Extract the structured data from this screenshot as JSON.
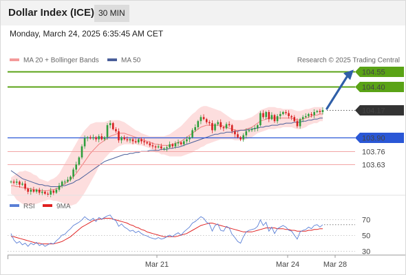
{
  "header": {
    "title": "Dollar Index (ICE)",
    "timeframe": "30 MIN"
  },
  "datetime": "Monday, March 24, 2025 6:35:45 AM CET",
  "legend": {
    "ma20": "MA 20 + Bollinger Bands",
    "ma50": "MA 50",
    "credit": "Research © 2025 Trading Central"
  },
  "colors": {
    "bull": "#2e9e3c",
    "bear": "#d62020",
    "ma20": "#f07f7f",
    "ma50": "#4a5f9a",
    "band": "#fdd8d8",
    "resistance": "#5aa316",
    "pivot": "#2a57d6",
    "support": "#e43030",
    "current": "#333333",
    "rsi": "#5a7fd6",
    "rsi_ma": "#e02020"
  },
  "chart_data": [
    {
      "type": "candlestick",
      "x_labels": [
        "Mar 21",
        "Mar 24",
        "Mar 28"
      ],
      "y_min": 103.25,
      "y_max": 104.75,
      "levels": [
        {
          "label": "104.55",
          "value": 104.55,
          "kind": "resistance"
        },
        {
          "label": "104.40",
          "value": 104.4,
          "kind": "resistance"
        },
        {
          "label": "104.17",
          "value": 104.17,
          "kind": "current"
        },
        {
          "label": "103.90",
          "value": 103.9,
          "kind": "pivot"
        },
        {
          "label": "103.76",
          "value": 103.76,
          "kind": "support"
        },
        {
          "label": "103.63",
          "value": 103.63,
          "kind": "support"
        }
      ],
      "closes": [
        103.46,
        103.45,
        103.46,
        103.43,
        103.44,
        103.39,
        103.36,
        103.38,
        103.36,
        103.38,
        103.35,
        103.36,
        103.34,
        103.33,
        103.37,
        103.35,
        103.38,
        103.42,
        103.46,
        103.46,
        103.48,
        103.51,
        103.58,
        103.63,
        103.7,
        103.81,
        103.89,
        103.9,
        103.89,
        103.9,
        103.88,
        103.91,
        103.88,
        103.9,
        104.02,
        104.04,
        103.98,
        103.96,
        103.87,
        103.9,
        103.88,
        103.87,
        103.88,
        103.86,
        103.85,
        103.88,
        103.86,
        103.85,
        103.84,
        103.82,
        103.81,
        103.8,
        103.81,
        103.79,
        103.79,
        103.8,
        103.83,
        103.81,
        103.84,
        103.85,
        103.83,
        103.86,
        103.88,
        103.9,
        103.97,
        104.0,
        104.06,
        104.1,
        104.08,
        104.05,
        104.04,
        103.97,
        104.03,
        104.05,
        104.0,
        103.99,
        104.03,
        104.02,
        103.96,
        103.93,
        103.9,
        103.88,
        103.92,
        103.96,
        103.97,
        103.98,
        103.99,
        104.02,
        104.14,
        104.1,
        104.15,
        104.08,
        104.12,
        104.06,
        104.11,
        104.13,
        104.15,
        104.14,
        104.11,
        104.1,
        104.06,
        104.01,
        104.08,
        104.1,
        104.11,
        104.13,
        104.12,
        104.15,
        104.16,
        104.15,
        104.17
      ],
      "ma20": [
        103.42,
        103.42,
        103.41,
        103.41,
        103.4,
        103.4,
        103.39,
        103.39,
        103.38,
        103.38,
        103.37,
        103.37,
        103.37,
        103.37,
        103.38,
        103.38,
        103.39,
        103.4,
        103.42,
        103.44,
        103.46,
        103.48,
        103.51,
        103.54,
        103.58,
        103.62,
        103.66,
        103.7,
        103.74,
        103.77,
        103.8,
        103.83,
        103.85,
        103.87,
        103.89,
        103.91,
        103.92,
        103.93,
        103.94,
        103.94,
        103.94,
        103.93,
        103.92,
        103.91,
        103.9,
        103.89,
        103.88,
        103.87,
        103.86,
        103.85,
        103.84,
        103.83,
        103.83,
        103.82,
        103.82,
        103.82,
        103.82,
        103.83,
        103.84,
        103.85,
        103.86,
        103.88,
        103.9,
        103.92,
        103.94,
        103.96,
        103.98,
        104.0,
        104.01,
        104.02,
        104.02,
        104.02,
        104.02,
        104.02,
        104.02,
        104.01,
        104.0,
        103.99,
        103.98,
        103.97,
        103.97,
        103.97,
        103.97,
        103.98,
        103.99,
        104.0,
        104.02,
        104.04,
        104.06,
        104.07,
        104.08,
        104.09,
        104.09,
        104.09,
        104.09,
        104.09,
        104.09,
        104.09,
        104.09,
        104.09,
        104.08,
        104.07,
        104.07,
        104.08,
        104.09,
        104.1,
        104.11,
        104.12,
        104.12,
        104.13,
        104.13
      ],
      "band_width": [
        0.08,
        0.1,
        0.13,
        0.15,
        0.16,
        0.17,
        0.17,
        0.16,
        0.15,
        0.14,
        0.12,
        0.11,
        0.1,
        0.09,
        0.1,
        0.11,
        0.12,
        0.14,
        0.17,
        0.2,
        0.23,
        0.26,
        0.28,
        0.3,
        0.31,
        0.31,
        0.31,
        0.3,
        0.29,
        0.27,
        0.25,
        0.22,
        0.2,
        0.18,
        0.17,
        0.16,
        0.15,
        0.14,
        0.13,
        0.12,
        0.11,
        0.1,
        0.09,
        0.08,
        0.07,
        0.07,
        0.06,
        0.06,
        0.06,
        0.06,
        0.07,
        0.08,
        0.08,
        0.09,
        0.09,
        0.1,
        0.11,
        0.12,
        0.13,
        0.14,
        0.15,
        0.16,
        0.17,
        0.18,
        0.19,
        0.19,
        0.2,
        0.2,
        0.2,
        0.19,
        0.18,
        0.17,
        0.16,
        0.15,
        0.14,
        0.13,
        0.12,
        0.11,
        0.1,
        0.1,
        0.1,
        0.1,
        0.1,
        0.1,
        0.1,
        0.1,
        0.1,
        0.1,
        0.11,
        0.11,
        0.11,
        0.11,
        0.11,
        0.11,
        0.1,
        0.1,
        0.09,
        0.09,
        0.09,
        0.09,
        0.09,
        0.09,
        0.09,
        0.09,
        0.09,
        0.08,
        0.08,
        0.08,
        0.08,
        0.07,
        0.07
      ],
      "ma50": [
        103.57,
        103.55,
        103.53,
        103.51,
        103.49,
        103.48,
        103.47,
        103.46,
        103.45,
        103.44,
        103.43,
        103.43,
        103.42,
        103.42,
        103.41,
        103.41,
        103.41,
        103.41,
        103.42,
        103.42,
        103.43,
        103.44,
        103.45,
        103.47,
        103.48,
        103.5,
        103.52,
        103.54,
        103.56,
        103.58,
        103.6,
        103.62,
        103.64,
        103.66,
        103.67,
        103.68,
        103.69,
        103.7,
        103.71,
        103.72,
        103.73,
        103.73,
        103.74,
        103.74,
        103.75,
        103.75,
        103.76,
        103.76,
        103.76,
        103.77,
        103.77,
        103.77,
        103.77,
        103.78,
        103.78,
        103.78,
        103.79,
        103.79,
        103.8,
        103.8,
        103.81,
        103.82,
        103.83,
        103.84,
        103.85,
        103.86,
        103.87,
        103.88,
        103.89,
        103.9,
        103.91,
        103.92,
        103.93,
        103.93,
        103.94,
        103.94,
        103.95,
        103.95,
        103.95,
        103.96,
        103.96,
        103.97,
        103.97,
        103.97,
        103.98,
        103.98,
        103.99,
        103.99,
        104.0,
        104.0,
        104.01,
        104.01,
        104.02,
        104.02,
        104.02,
        104.03,
        104.03,
        104.04,
        104.04,
        104.04,
        104.05,
        104.05,
        104.05,
        104.06,
        104.06,
        104.07,
        104.07,
        104.08,
        104.08,
        104.09,
        104.09
      ]
    },
    {
      "type": "line",
      "legend": [
        "RSI",
        "9MA"
      ],
      "y_ticks": [
        70,
        50,
        30
      ],
      "y_min": 20,
      "y_max": 80,
      "rsi": [
        52,
        44,
        40,
        42,
        38,
        40,
        36,
        40,
        38,
        41,
        37,
        39,
        36,
        38,
        40,
        39,
        43,
        46,
        50,
        51,
        55,
        58,
        62,
        64,
        66,
        69,
        73,
        70,
        68,
        71,
        67,
        72,
        70,
        72,
        74,
        75,
        70,
        68,
        61,
        64,
        60,
        58,
        55,
        56,
        53,
        55,
        52,
        50,
        49,
        47,
        46,
        45,
        47,
        45,
        46,
        48,
        50,
        48,
        51,
        53,
        50,
        54,
        57,
        60,
        65,
        67,
        70,
        73,
        71,
        66,
        64,
        55,
        62,
        64,
        56,
        55,
        61,
        59,
        51,
        47,
        42,
        40,
        48,
        54,
        56,
        57,
        58,
        61,
        69,
        62,
        66,
        55,
        60,
        52,
        58,
        60,
        62,
        60,
        56,
        55,
        50,
        45,
        54,
        56,
        57,
        60,
        58,
        62,
        63,
        60,
        63
      ],
      "rsi_ma": [
        48,
        48,
        47,
        46,
        45,
        44,
        43,
        42,
        41,
        40,
        40,
        39,
        39,
        39,
        39,
        39,
        40,
        41,
        42,
        44,
        46,
        48,
        51,
        54,
        57,
        60,
        62,
        64,
        66,
        68,
        69,
        70,
        70,
        71,
        71,
        71,
        70,
        69,
        68,
        67,
        66,
        65,
        63,
        62,
        60,
        59,
        57,
        56,
        54,
        53,
        52,
        51,
        50,
        49,
        48,
        48,
        48,
        48,
        48,
        49,
        50,
        51,
        52,
        54,
        56,
        58,
        60,
        62,
        63,
        64,
        65,
        65,
        64,
        63,
        62,
        61,
        60,
        59,
        58,
        57,
        56,
        55,
        54,
        54,
        54,
        54,
        55,
        56,
        57,
        58,
        59,
        59,
        59,
        59,
        58,
        58,
        58,
        57,
        57,
        56,
        56,
        55,
        55,
        55,
        55,
        56,
        56,
        57,
        57,
        58,
        58
      ]
    }
  ]
}
